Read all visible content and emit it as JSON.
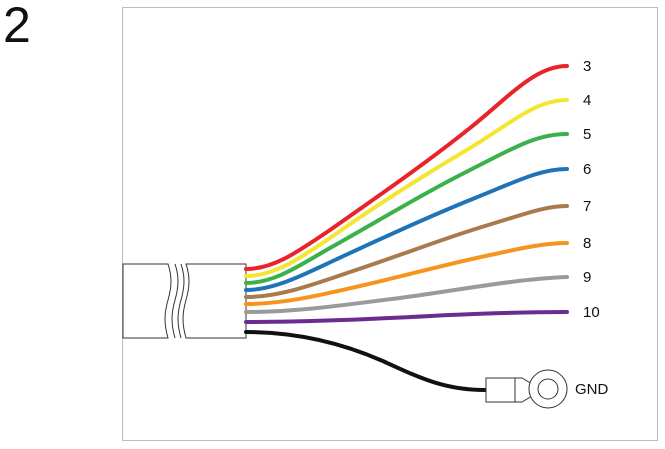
{
  "step": {
    "number": "2"
  },
  "diagram": {
    "wires": [
      {
        "id": "wire-3",
        "label": "3",
        "color": "#e8232a"
      },
      {
        "id": "wire-4",
        "label": "4",
        "color": "#f4e532"
      },
      {
        "id": "wire-5",
        "label": "5",
        "color": "#3bb14a"
      },
      {
        "id": "wire-6",
        "label": "6",
        "color": "#1f73b7"
      },
      {
        "id": "wire-7",
        "label": "7",
        "color": "#a87a4e"
      },
      {
        "id": "wire-8",
        "label": "8",
        "color": "#f7941d"
      },
      {
        "id": "wire-9",
        "label": "9",
        "color": "#9a9a9a"
      },
      {
        "id": "wire-10",
        "label": "10",
        "color": "#6a2c91"
      }
    ],
    "ground_wire": {
      "label": "GND",
      "color": "#111111"
    },
    "frame_color": "#bdbdbd",
    "cable_color": "#ffffff",
    "outline_color": "#333333"
  }
}
